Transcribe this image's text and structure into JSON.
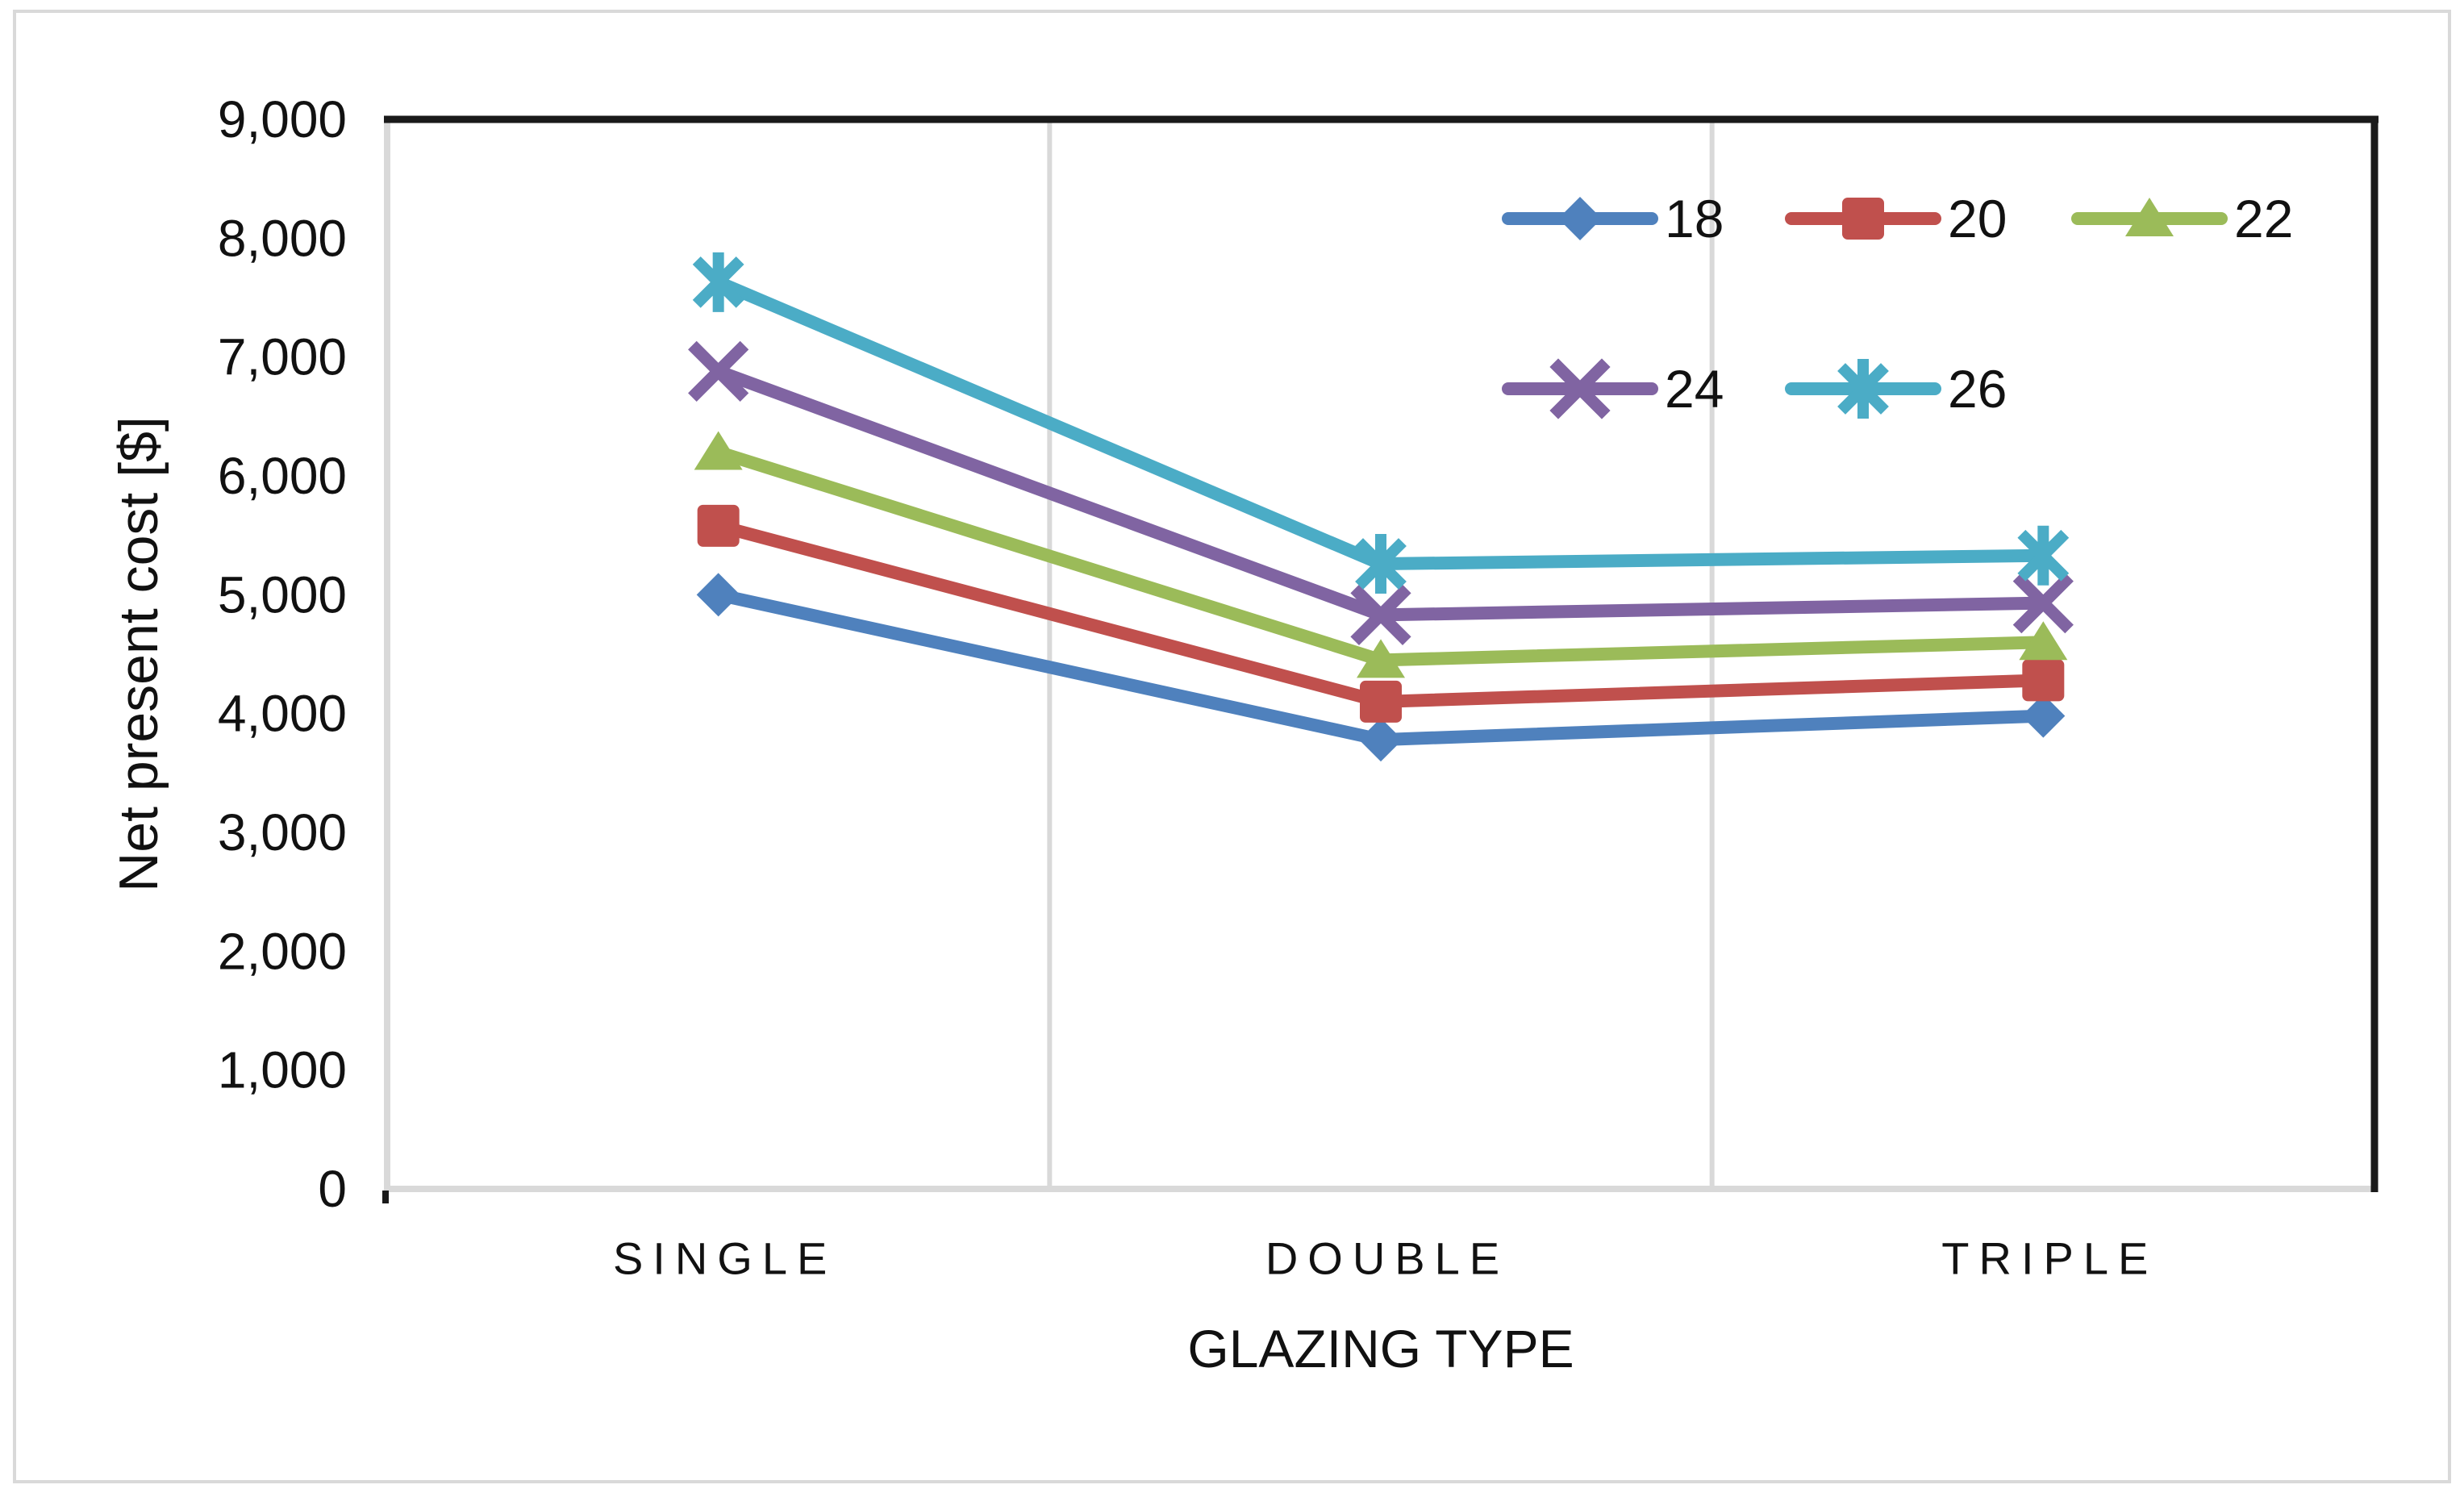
{
  "figure": {
    "background": "#ffffff",
    "border_color": "#d9d9d9"
  },
  "style": {
    "text_color": "#111111",
    "dark_axis_color": "#1a1a1a",
    "light_grid_color": "#d9d9d9"
  },
  "chart_data": {
    "type": "line",
    "title": "",
    "categories": [
      "SINGLE",
      "DOUBLE",
      "TRIPLE"
    ],
    "xlabel": "GLAZING TYPE",
    "ylabel": "Net present cost [$]",
    "ylim": [
      0,
      9000
    ],
    "ytick_step": 1000,
    "ytick_labels": [
      "0",
      "1,000",
      "2,000",
      "3,000",
      "4,000",
      "5,000",
      "6,000",
      "7,000",
      "8,000",
      "9,000"
    ],
    "grid": "vertical category separators only; no horizontal gridlines",
    "legend_position": "inside plot, top-right, two rows",
    "legend_rows": [
      [
        "18",
        "20",
        "22"
      ],
      [
        "24",
        "26"
      ]
    ],
    "series": [
      {
        "name": "18",
        "color": "#4F81BD",
        "marker": "diamond",
        "values": [
          5000,
          3780,
          3980
        ]
      },
      {
        "name": "20",
        "color": "#C0504D",
        "marker": "square",
        "values": [
          5580,
          4100,
          4280
        ]
      },
      {
        "name": "22",
        "color": "#9BBB59",
        "marker": "triangle",
        "values": [
          6200,
          4450,
          4600
        ]
      },
      {
        "name": "24",
        "color": "#8064A2",
        "marker": "x",
        "values": [
          6880,
          4830,
          4930
        ]
      },
      {
        "name": "26",
        "color": "#4BACC6",
        "marker": "asterisk",
        "values": [
          7630,
          5260,
          5330
        ]
      }
    ]
  }
}
